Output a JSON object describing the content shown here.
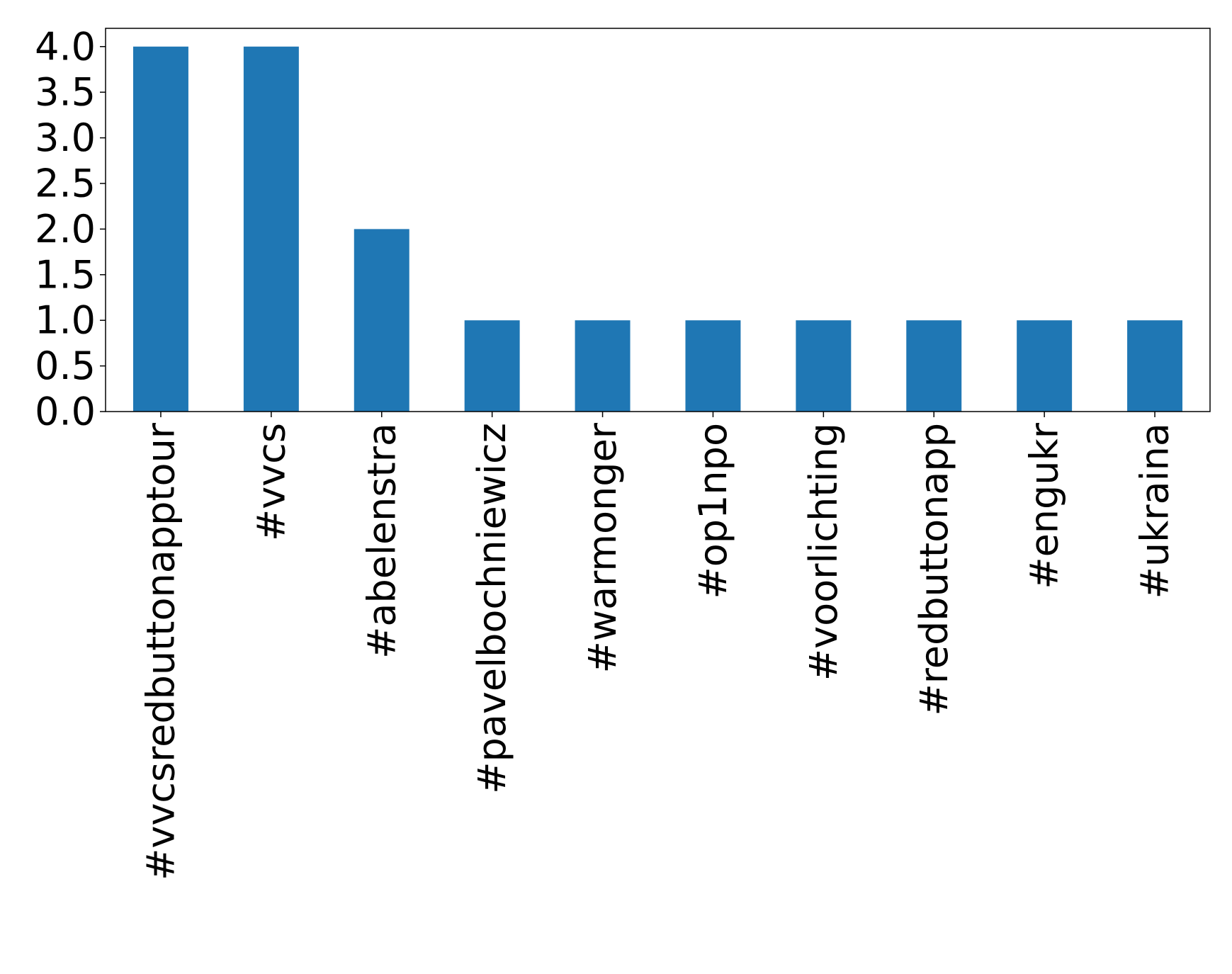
{
  "chart_data": {
    "type": "bar",
    "categories": [
      "#vvcsredbuttonapptour",
      "#vvcs",
      "#abelenstra",
      "#pavelbochniewicz",
      "#warmonger",
      "#op1npo",
      "#voorlichting",
      "#redbuttonapp",
      "#engukr",
      "#ukraina"
    ],
    "values": [
      4,
      4,
      2,
      1,
      1,
      1,
      1,
      1,
      1,
      1
    ],
    "color": "#1f77b4",
    "ylim": [
      0,
      4.2
    ],
    "yticks": [
      {
        "value": 0,
        "label": "0.0"
      },
      {
        "value": 0.5,
        "label": "0.5"
      },
      {
        "value": 1,
        "label": "1.0"
      },
      {
        "value": 1.5,
        "label": "1.5"
      },
      {
        "value": 2,
        "label": "2.0"
      },
      {
        "value": 2.5,
        "label": "2.5"
      },
      {
        "value": 3,
        "label": "3.0"
      },
      {
        "value": 3.5,
        "label": "3.5"
      },
      {
        "value": 4,
        "label": "4.0"
      }
    ],
    "grid": false
  }
}
